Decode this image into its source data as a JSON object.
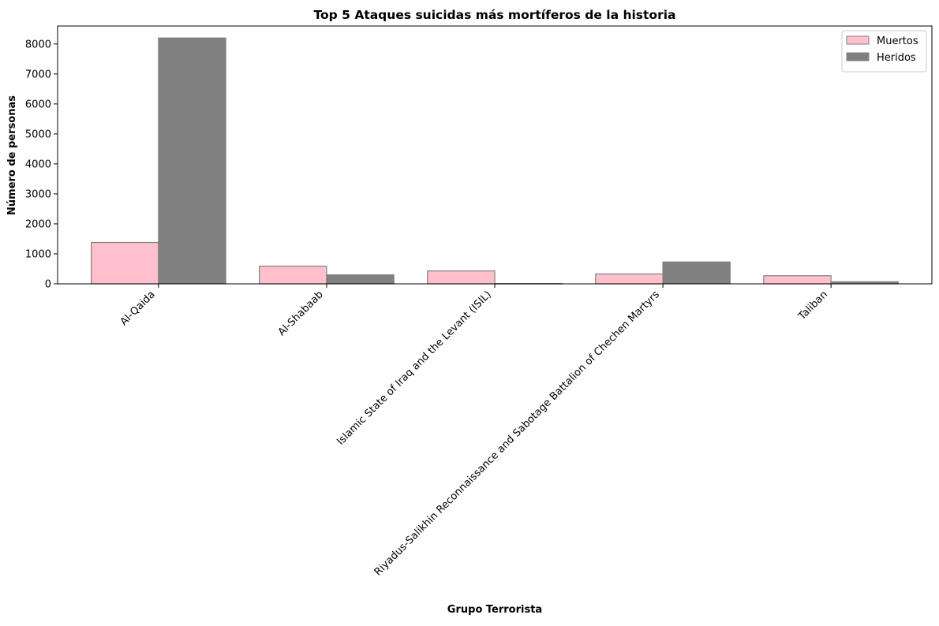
{
  "chart_data": {
    "type": "bar",
    "title": "Top 5 Ataques suicidas más mortíferos de la historia",
    "xlabel": "Grupo Terrorista",
    "ylabel": "Número de personas",
    "categories": [
      "Al-Qaida",
      "Al-Shabaab",
      "Islamic State of Iraq and the Levant (ISIL)",
      "Riyadus-Salikhin Reconnaissance and Sabotage Battalion of Chechen Martyrs",
      "Taliban"
    ],
    "series": [
      {
        "name": "Muertos",
        "values": [
          1380,
          590,
          430,
          330,
          270
        ],
        "color": "#ffc0cb",
        "edge_color": "#808080"
      },
      {
        "name": "Heridos",
        "values": [
          8200,
          300,
          10,
          730,
          70
        ],
        "color": "#808080",
        "edge_color": "#808080"
      }
    ],
    "ylim": [
      0,
      8600
    ],
    "yticks": [
      0,
      1000,
      2000,
      3000,
      4000,
      5000,
      6000,
      7000,
      8000
    ],
    "grid": false,
    "legend_position": "top-right"
  }
}
